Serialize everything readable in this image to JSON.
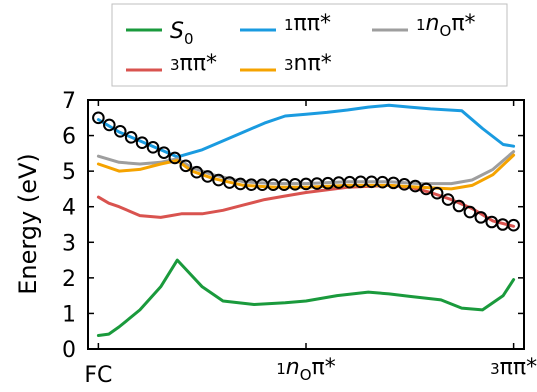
{
  "chart_data": {
    "type": "line",
    "ylabel": "Energy (eV)",
    "ylim": [
      0,
      7
    ],
    "yticks": [
      "0",
      "1",
      "2",
      "3",
      "4",
      "5",
      "6",
      "7"
    ],
    "xlim": [
      -0.05,
      2.05
    ],
    "xticks": [
      {
        "x": 0,
        "base": "FC",
        "sup": "",
        "sub": "",
        "tail": ""
      },
      {
        "x": 1,
        "base": "n",
        "sup": "1",
        "sub": "O",
        "tail": "π*"
      },
      {
        "x": 2,
        "base": "ππ*",
        "sup": "3",
        "sub": "",
        "tail": ""
      }
    ],
    "grid": false,
    "legend_position": "top-center",
    "series": [
      {
        "name": "S₀",
        "legend_base": "S",
        "legend_sup": "",
        "legend_sub": "0",
        "legend_tail": "",
        "color": "#1a9a3c",
        "style": "line",
        "width": 3,
        "x": [
          0,
          0.05,
          0.1,
          0.2,
          0.3,
          0.38,
          0.42,
          0.5,
          0.6,
          0.75,
          0.9,
          1.0,
          1.15,
          1.3,
          1.4,
          1.5,
          1.65,
          1.75,
          1.85,
          1.95,
          2.0
        ],
        "y": [
          0.38,
          0.42,
          0.62,
          1.1,
          1.75,
          2.5,
          2.25,
          1.75,
          1.35,
          1.25,
          1.3,
          1.35,
          1.5,
          1.6,
          1.55,
          1.48,
          1.38,
          1.15,
          1.1,
          1.5,
          1.95
        ]
      },
      {
        "name": "¹ππ*",
        "legend_base": "ππ*",
        "legend_sup": "1",
        "legend_sub": "",
        "legend_tail": "",
        "color": "#1a9be0",
        "style": "line",
        "width": 3,
        "x": [
          0,
          0.1,
          0.2,
          0.3,
          0.38,
          0.5,
          0.6,
          0.7,
          0.8,
          0.9,
          1.0,
          1.1,
          1.2,
          1.3,
          1.4,
          1.5,
          1.6,
          1.75,
          1.85,
          1.95,
          2.0
        ],
        "y": [
          6.45,
          6.1,
          5.85,
          5.6,
          5.4,
          5.6,
          5.85,
          6.1,
          6.35,
          6.55,
          6.6,
          6.65,
          6.72,
          6.8,
          6.85,
          6.8,
          6.75,
          6.7,
          6.2,
          5.75,
          5.7
        ]
      },
      {
        "name": "¹nOπ*",
        "legend_base": "n",
        "legend_sup": "1",
        "legend_sub": "O",
        "legend_tail": "π*",
        "color": "#9e9e9e",
        "style": "line",
        "width": 3,
        "x": [
          0,
          0.1,
          0.2,
          0.3,
          0.38,
          0.45,
          0.55,
          0.7,
          0.85,
          1.0,
          1.2,
          1.4,
          1.55,
          1.7,
          1.8,
          1.9,
          2.0
        ],
        "y": [
          5.42,
          5.25,
          5.2,
          5.25,
          5.35,
          5.1,
          4.9,
          4.7,
          4.65,
          4.65,
          4.7,
          4.7,
          4.65,
          4.65,
          4.75,
          5.05,
          5.55
        ]
      },
      {
        "name": "³ππ*",
        "legend_base": "ππ*",
        "legend_sup": "3",
        "legend_sub": "",
        "legend_tail": "",
        "color": "#d9534f",
        "style": "line",
        "width": 3,
        "x": [
          0,
          0.05,
          0.1,
          0.2,
          0.3,
          0.35,
          0.4,
          0.5,
          0.6,
          0.7,
          0.8,
          0.9,
          1.0,
          1.2,
          1.4,
          1.5,
          1.6,
          1.7,
          1.8,
          1.9,
          2.0
        ],
        "y": [
          4.27,
          4.1,
          4.0,
          3.75,
          3.7,
          3.75,
          3.8,
          3.8,
          3.9,
          4.05,
          4.2,
          4.3,
          4.4,
          4.55,
          4.6,
          4.55,
          4.4,
          4.2,
          3.95,
          3.6,
          3.45
        ]
      },
      {
        "name": "³nπ*",
        "legend_base": "nπ*",
        "legend_sup": "3",
        "legend_sub": "",
        "legend_tail": "",
        "color": "#f5a300",
        "style": "line",
        "width": 3,
        "x": [
          0,
          0.1,
          0.2,
          0.3,
          0.38,
          0.45,
          0.55,
          0.7,
          0.85,
          1.0,
          1.2,
          1.4,
          1.55,
          1.7,
          1.8,
          1.9,
          2.0
        ],
        "y": [
          5.2,
          5.0,
          5.05,
          5.2,
          5.3,
          5.0,
          4.8,
          4.6,
          4.55,
          4.55,
          4.6,
          4.6,
          4.55,
          4.5,
          4.6,
          4.9,
          5.45
        ]
      },
      {
        "name": "",
        "color": "#000000",
        "style": "markers",
        "x": [
          0,
          0.0526,
          0.1053,
          0.1579,
          0.2105,
          0.2632,
          0.3158,
          0.3684,
          0.4211,
          0.4737,
          0.5263,
          0.5789,
          0.6316,
          0.6842,
          0.7368,
          0.7895,
          0.8421,
          0.8947,
          0.9474,
          1.0,
          1.0526,
          1.1053,
          1.1579,
          1.2105,
          1.2632,
          1.3158,
          1.3684,
          1.4211,
          1.4737,
          1.5263,
          1.5789,
          1.6316,
          1.6842,
          1.7368,
          1.7895,
          1.8421,
          1.8947,
          1.9474,
          2.0
        ],
        "y": [
          6.5,
          6.3,
          6.12,
          5.95,
          5.8,
          5.67,
          5.52,
          5.37,
          5.15,
          4.97,
          4.85,
          4.75,
          4.68,
          4.64,
          4.62,
          4.62,
          4.62,
          4.62,
          4.63,
          4.64,
          4.65,
          4.66,
          4.68,
          4.69,
          4.7,
          4.7,
          4.69,
          4.67,
          4.63,
          4.58,
          4.5,
          4.38,
          4.2,
          4.02,
          3.85,
          3.7,
          3.57,
          3.5,
          3.48
        ]
      }
    ]
  }
}
